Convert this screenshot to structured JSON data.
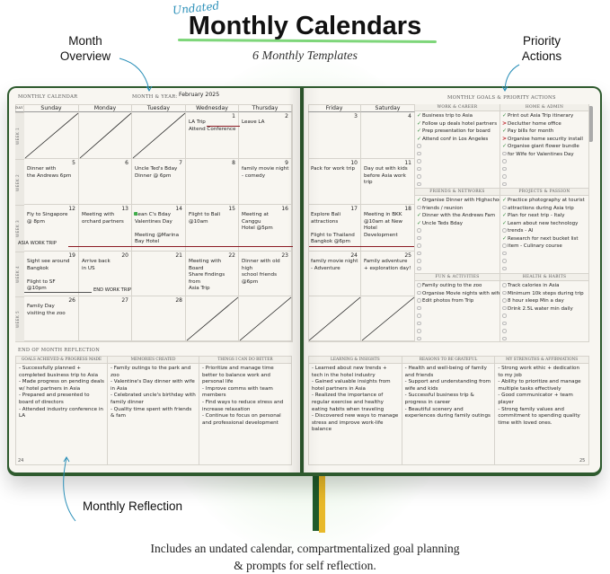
{
  "header": {
    "script_tag": "Undated",
    "title": "Monthly Calendars",
    "subtitle": "6 Monthly Templates"
  },
  "callouts": {
    "month_overview": "Month\nOverview",
    "priority_actions": "Priority\nActions",
    "monthly_reflection": "Monthly Reflection"
  },
  "caption": "Includes an undated calendar, compartmentalized goal planning\n& prompts for self reflection.",
  "colors": {
    "accent_blue": "#2a8fb8",
    "highlight_green": "#7ed67a",
    "cover_green": "#2e5a2e",
    "trip_line_red": "#8b1a24",
    "check_green": "#2f8a3a",
    "ribbon_green": "#1f5a2a",
    "ribbon_yellow": "#e8b92a"
  },
  "left_page": {
    "section_label": "MONTHLY CALENDAR",
    "month_year_label": "MONTH & YEAR:",
    "month_year_value": "February 2025",
    "day_label": "DAY",
    "page_number": "24",
    "reflection_label": "END OF MONTH REFLECTION",
    "reflection": [
      {
        "title": "GOALS ACHIEVED & PROGRESS MADE",
        "text": "- Successfully planned + completed business trip to Asia\n- Made progress on pending deals w/ hotel partners in Asia\n- Prepared and presented to board of directors\n- Attended industry conference in LA"
      },
      {
        "title": "MEMORIES CREATED",
        "text": "- Family outings to the park and zoo\n- Valentine's Day dinner with wife in Asia\n- Celebrated uncle's birthday with family dinner\n- Quality time spent with friends & fam"
      },
      {
        "title": "THINGS I CAN DO BETTER",
        "text": "- Prioritize and manage time better to balance work and personal life\n- Improve comms with team members\n- Find ways to reduce stress and increase relaxation\n- Continue to focus on personal and professional development"
      }
    ]
  },
  "calendar": {
    "weekdays": [
      "Sunday",
      "Monday",
      "Tuesday",
      "Wednesday",
      "Thursday",
      "Friday",
      "Saturday"
    ],
    "week_labels": [
      "WEEK 1",
      "WEEK 2",
      "WEEK 3",
      "WEEK 4",
      "WEEK 5"
    ],
    "weeks": [
      [
        {
          "crossed": true
        },
        {
          "crossed": true
        },
        {
          "crossed": true
        },
        {
          "num": "1",
          "text": "LA Trip\nAttend Conference"
        },
        {
          "num": "2",
          "text": "     Leave LA"
        },
        {
          "num": "3",
          "text": ""
        },
        {
          "num": "4",
          "text": ""
        }
      ],
      [
        {
          "num": "5",
          "text": "Dinner with\nthe Andrews 6pm"
        },
        {
          "num": "6",
          "text": ""
        },
        {
          "num": "7",
          "text": "Uncle Ted's Bday\nDinner @ 6pm"
        },
        {
          "num": "8",
          "text": ""
        },
        {
          "num": "9",
          "text": "family movie night\n- comedy"
        },
        {
          "num": "10",
          "text": "Pack for work trip"
        },
        {
          "num": "11",
          "text": "Day out with kids\nbefore Asia work trip"
        }
      ],
      [
        {
          "num": "12",
          "text": "Fly to Singapore\n@ 8pm"
        },
        {
          "num": "13",
          "text": "Meeting with\norchard partners"
        },
        {
          "num": "14",
          "text": "Sean C's Bday\nValentines Day\n\nMeeting @Marina\nBay Hotel"
        },
        {
          "num": "15",
          "text": "Flight to Bali\n@10am"
        },
        {
          "num": "16",
          "text": "Meeting at Canggu\nHotel @5pm"
        },
        {
          "num": "17",
          "text": "Explore Bali\nattractions\n\nFlight to Thailand\nBangkok @6pm"
        },
        {
          "num": "18",
          "text": "Meeting in BKK\n@10am at New\nHotel Development"
        }
      ],
      [
        {
          "num": "19",
          "text": "Sight see around\nBangkok\n\nFlight to SF @10pm"
        },
        {
          "num": "20",
          "text": "Arrive back\nin US"
        },
        {
          "num": "21",
          "text": ""
        },
        {
          "num": "22",
          "text": "Meeting with Board\nShare findings from\nAsia Trip"
        },
        {
          "num": "23",
          "text": "Dinner with old high\nschool friends @6pm"
        },
        {
          "num": "24",
          "text": "family movie night\n- Adventure"
        },
        {
          "num": "25",
          "text": "Family adventure\n+ exploration day!"
        }
      ],
      [
        {
          "num": "26",
          "text": "Family Day\nvisiting the zoo"
        },
        {
          "num": "27",
          "text": ""
        },
        {
          "num": "28",
          "text": ""
        },
        {
          "crossed": true
        },
        {
          "crossed": true
        },
        {
          "crossed": true
        },
        {
          "crossed": true
        }
      ]
    ],
    "trip_annotations": {
      "start": "ASIA WORK TRIP",
      "end": "END WORK TRIP"
    }
  },
  "right_page": {
    "goals_label": "MONTHLY GOALS & PRIORITY ACTIONS",
    "page_number": "25",
    "goal_sections": [
      {
        "title": "WORK & CAREER",
        "items": [
          {
            "status": "done",
            "text": "Business trip to Asia"
          },
          {
            "status": "done",
            "text": "Follow up deals hotel partners"
          },
          {
            "status": "done",
            "text": "Prep presentation for board"
          },
          {
            "status": "done",
            "text": "Attend conf in Los Angeles"
          },
          {
            "status": "open",
            "text": ""
          },
          {
            "status": "open",
            "text": ""
          },
          {
            "status": "open",
            "text": ""
          },
          {
            "status": "open",
            "text": ""
          },
          {
            "status": "open",
            "text": ""
          },
          {
            "status": "open",
            "text": ""
          }
        ]
      },
      {
        "title": "HOME & ADMIN",
        "items": [
          {
            "status": "done",
            "text": "Print out Asia Trip itinerary"
          },
          {
            "status": "migrated",
            "text": "Declutter home office"
          },
          {
            "status": "done",
            "text": "Pay bills for month"
          },
          {
            "status": "migrated",
            "text": "Organise home security install"
          },
          {
            "status": "done",
            "text": "Organise giant flower bundle"
          },
          {
            "status": "open",
            "text": "for Wife for Valentines Day"
          },
          {
            "status": "open",
            "text": ""
          },
          {
            "status": "open",
            "text": ""
          },
          {
            "status": "open",
            "text": ""
          },
          {
            "status": "open",
            "text": ""
          }
        ]
      },
      {
        "title": "FRIENDS & NETWORKS",
        "items": [
          {
            "status": "done",
            "text": "Organise Dinner with Highschool"
          },
          {
            "status": "open",
            "text": "friends / reunion"
          },
          {
            "status": "done",
            "text": "Dinner with the Andrews Fam"
          },
          {
            "status": "done",
            "text": "Uncle Teds Bday"
          },
          {
            "status": "open",
            "text": ""
          },
          {
            "status": "open",
            "text": ""
          },
          {
            "status": "open",
            "text": ""
          },
          {
            "status": "open",
            "text": ""
          },
          {
            "status": "open",
            "text": ""
          },
          {
            "status": "open",
            "text": ""
          }
        ]
      },
      {
        "title": "PROJECTS & PASSION",
        "items": [
          {
            "status": "done",
            "text": "Practice photography at tourist"
          },
          {
            "status": "open",
            "text": "attractions during Asia trip"
          },
          {
            "status": "done",
            "text": "Plan for next trip - Italy"
          },
          {
            "status": "done",
            "text": "Learn about new technology"
          },
          {
            "status": "open",
            "text": "trends - AI"
          },
          {
            "status": "done",
            "text": "Research for next bucket list"
          },
          {
            "status": "open",
            "text": "item - Culinary course"
          },
          {
            "status": "open",
            "text": ""
          },
          {
            "status": "open",
            "text": ""
          },
          {
            "status": "open",
            "text": ""
          }
        ]
      },
      {
        "title": "FUN & ACTIVITIES",
        "items": [
          {
            "status": "open",
            "text": "Family outing to the zoo"
          },
          {
            "status": "open",
            "text": "Organise Movie nights with wife"
          },
          {
            "status": "open",
            "text": "Edit photos from Trip"
          },
          {
            "status": "open",
            "text": ""
          },
          {
            "status": "open",
            "text": ""
          },
          {
            "status": "open",
            "text": ""
          },
          {
            "status": "open",
            "text": ""
          },
          {
            "status": "open",
            "text": ""
          }
        ]
      },
      {
        "title": "HEALTH & HABITS",
        "items": [
          {
            "status": "open",
            "text": "Track calories in Asia"
          },
          {
            "status": "open",
            "text": "Minimum 10k steps during trip"
          },
          {
            "status": "open",
            "text": "8 hour sleep Min a day"
          },
          {
            "status": "open",
            "text": "Drink 2.5L water min daily"
          },
          {
            "status": "open",
            "text": ""
          },
          {
            "status": "open",
            "text": ""
          },
          {
            "status": "open",
            "text": ""
          },
          {
            "status": "open",
            "text": ""
          }
        ]
      }
    ],
    "reflection": [
      {
        "title": "LEARNING & INSIGHTS",
        "text": "- Learned about new trends + tech in the hotel industry\n- Gained valuable insights from hotel partners in Asia\n- Realized the importance of regular exercise and healthy eating habits when traveling\n- Discovered new ways to manage stress and improve work-life balance"
      },
      {
        "title": "REASONS TO BE GRATEFUL",
        "text": "- Health and well-being of family and friends\n- Support and understanding from wife and kids\n- Successful business trip & progress in career\n- Beautiful scenery and experiences during family outings"
      },
      {
        "title": "MY STRENGTHS & AFFIRMATIONS",
        "text": "- Strong work ethic + dedication to my job\n- Ability to prioritize and manage multiple tasks effectively\n- Good communicator + team player\n- Strong family values and commitment to spending quality time with loved ones."
      }
    ]
  }
}
